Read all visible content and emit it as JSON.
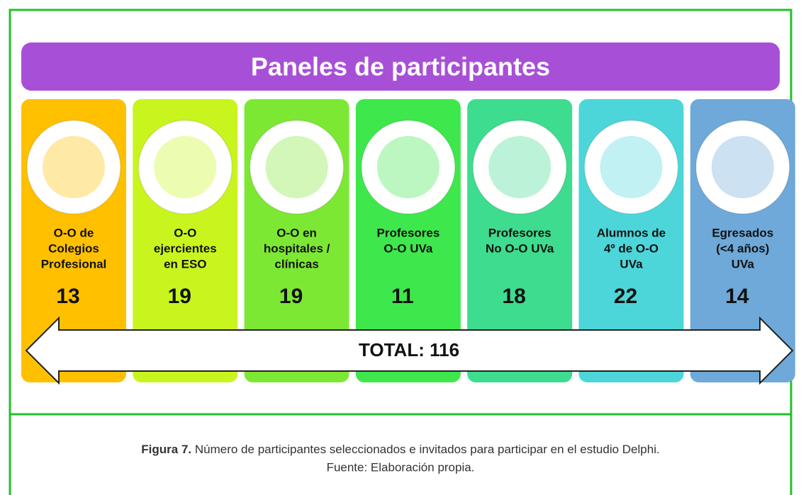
{
  "title": "Paneles de participantes",
  "panels": [
    {
      "label": [
        "O-O de",
        "Colegios",
        "Profesional"
      ],
      "count": "13"
    },
    {
      "label": [
        "O-O",
        "ejercientes",
        "en ESO"
      ],
      "count": "19"
    },
    {
      "label": [
        "O-O en",
        "hospitales /",
        "clínicas"
      ],
      "count": "19"
    },
    {
      "label": [
        "Profesores",
        "O-O UVa"
      ],
      "count": "11"
    },
    {
      "label": [
        "Profesores",
        "No O-O UVa"
      ],
      "count": "18"
    },
    {
      "label": [
        "Alumnos de",
        "4º de O-O",
        "UVa"
      ],
      "count": "22"
    },
    {
      "label": [
        "Egresados",
        "(<4 años)",
        "UVa"
      ],
      "count": "14"
    }
  ],
  "total": "TOTAL: 116",
  "caption": {
    "figure": "Figura 7.",
    "text": "Número de participantes seleccionados e invitados para participar en el estudio Delphi.",
    "source": "Fuente: Elaboración propia."
  }
}
